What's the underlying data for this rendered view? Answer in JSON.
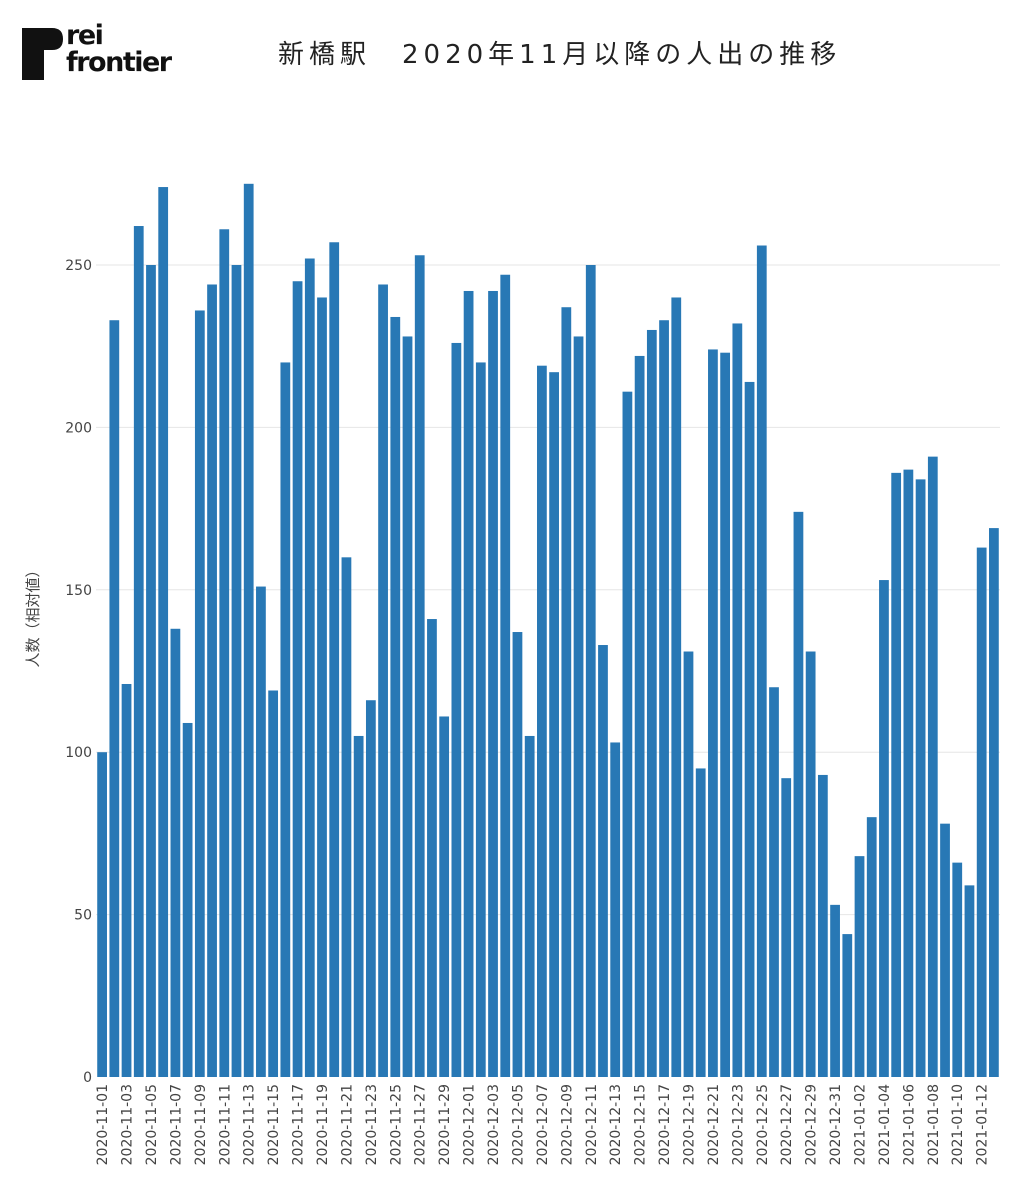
{
  "brand": {
    "line1": "rei",
    "line2": "frontier",
    "color": "#111111"
  },
  "title": "新橋駅　2020年11月以降の人出の推移",
  "chart_data": {
    "type": "bar",
    "ylabel": "人数（相対値）",
    "xlabel": "",
    "ylim": [
      0,
      285
    ],
    "yticks": [
      0,
      50,
      100,
      150,
      200,
      250
    ],
    "grid": true,
    "bar_color": "#2878b5",
    "categories": [
      "2020-11-01",
      "2020-11-02",
      "2020-11-03",
      "2020-11-04",
      "2020-11-05",
      "2020-11-06",
      "2020-11-07",
      "2020-11-08",
      "2020-11-09",
      "2020-11-10",
      "2020-11-11",
      "2020-11-12",
      "2020-11-13",
      "2020-11-14",
      "2020-11-15",
      "2020-11-16",
      "2020-11-17",
      "2020-11-18",
      "2020-11-19",
      "2020-11-20",
      "2020-11-21",
      "2020-11-22",
      "2020-11-23",
      "2020-11-24",
      "2020-11-25",
      "2020-11-26",
      "2020-11-27",
      "2020-11-28",
      "2020-11-29",
      "2020-11-30",
      "2020-12-01",
      "2020-12-02",
      "2020-12-03",
      "2020-12-04",
      "2020-12-05",
      "2020-12-06",
      "2020-12-07",
      "2020-12-08",
      "2020-12-09",
      "2020-12-10",
      "2020-12-11",
      "2020-12-12",
      "2020-12-13",
      "2020-12-14",
      "2020-12-15",
      "2020-12-16",
      "2020-12-17",
      "2020-12-18",
      "2020-12-19",
      "2020-12-20",
      "2020-12-21",
      "2020-12-22",
      "2020-12-23",
      "2020-12-24",
      "2020-12-25",
      "2020-12-26",
      "2020-12-27",
      "2020-12-28",
      "2020-12-29",
      "2020-12-30",
      "2020-12-31",
      "2021-01-01",
      "2021-01-02",
      "2021-01-03",
      "2021-01-04",
      "2021-01-05",
      "2021-01-06",
      "2021-01-07",
      "2021-01-08",
      "2021-01-09",
      "2021-01-10",
      "2021-01-11",
      "2021-01-12",
      "2021-01-13"
    ],
    "xtick_labels": [
      "2020-11-01",
      "2020-11-03",
      "2020-11-05",
      "2020-11-07",
      "2020-11-09",
      "2020-11-11",
      "2020-11-13",
      "2020-11-15",
      "2020-11-17",
      "2020-11-19",
      "2020-11-21",
      "2020-11-23",
      "2020-11-25",
      "2020-11-27",
      "2020-11-29",
      "2020-12-01",
      "2020-12-03",
      "2020-12-05",
      "2020-12-07",
      "2020-12-09",
      "2020-12-11",
      "2020-12-13",
      "2020-12-15",
      "2020-12-17",
      "2020-12-19",
      "2020-12-21",
      "2020-12-23",
      "2020-12-25",
      "2020-12-27",
      "2020-12-29",
      "2020-12-31",
      "2021-01-02",
      "2021-01-04",
      "2021-01-06",
      "2021-01-08",
      "2021-01-10",
      "2021-01-12"
    ],
    "values": [
      100,
      233,
      121,
      262,
      250,
      274,
      138,
      109,
      236,
      244,
      261,
      250,
      275,
      151,
      119,
      220,
      245,
      252,
      240,
      257,
      160,
      105,
      116,
      244,
      234,
      228,
      253,
      141,
      111,
      226,
      242,
      220,
      242,
      247,
      137,
      105,
      219,
      217,
      237,
      228,
      250,
      133,
      103,
      211,
      222,
      230,
      233,
      240,
      131,
      95,
      224,
      223,
      232,
      214,
      256,
      120,
      92,
      174,
      131,
      93,
      53,
      44,
      68,
      80,
      153,
      186,
      187,
      184,
      191,
      78,
      66,
      59,
      163,
      169
    ]
  }
}
